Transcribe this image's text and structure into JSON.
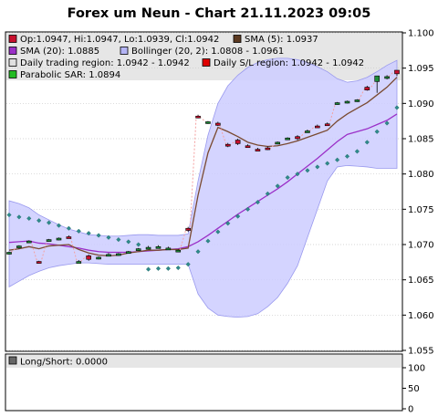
{
  "title": "Forex um Neun - Chart 21.11.2023 09:05",
  "legend": [
    {
      "label": "Op:1.0947, Hi:1.0947, Lo:1.0939, Cl:1.0942",
      "color": "#c8102e"
    },
    {
      "label": "SMA (5): 1.0937",
      "color": "#5c3a21"
    },
    {
      "label": "SMA (20): 1.0885",
      "color": "#9b30c8"
    },
    {
      "label": "Bollinger (20, 2): 1.0808 - 1.0961",
      "color": "#b4b4f5"
    },
    {
      "label": "Daily trading region: 1.0942 - 1.0942",
      "color": "#e0e0e0"
    },
    {
      "label": "Daily S/L region: 1.0942 - 1.0942",
      "color": "#e00000"
    },
    {
      "label": "Parabolic SAR: 1.0894",
      "color": "#22bb22"
    }
  ],
  "lower_panel": {
    "legend": "Long/Short: 0.0000",
    "legend_color": "#666666",
    "y_ticks": [
      "100",
      "50",
      "0"
    ]
  },
  "colors": {
    "bollinger_fill": "#ccccff",
    "bollinger_line": "#9999ee",
    "sma5": "#7a4a30",
    "sma20": "#9b30c8",
    "sar": "#2e8b8b",
    "candle_up": "#1e8c3a",
    "candle_down": "#c8102e",
    "jump_line": "#f4a0a0",
    "legend_bg": "#e6e6e6"
  },
  "chart_data": {
    "type": "candlestick",
    "title": "Forex um Neun - Chart 21.11.2023 09:05",
    "ylim": [
      1.055,
      1.1
    ],
    "y_ticks": [
      "1.055",
      "1.060",
      "1.065",
      "1.070",
      "1.075",
      "1.080",
      "1.085",
      "1.090",
      "1.095",
      "1.100"
    ],
    "candles": [
      {
        "o": 1.0688,
        "h": 1.069,
        "l": 1.0686,
        "c": 1.0689
      },
      {
        "o": 1.0697,
        "h": 1.0699,
        "l": 1.0694,
        "c": 1.0698
      },
      {
        "o": 1.0704,
        "h": 1.0706,
        "l": 1.0702,
        "c": 1.0705
      },
      {
        "o": 1.0676,
        "h": 1.0677,
        "l": 1.0673,
        "c": 1.0674
      },
      {
        "o": 1.0706,
        "h": 1.0708,
        "l": 1.0704,
        "c": 1.0707
      },
      {
        "o": 1.0708,
        "h": 1.071,
        "l": 1.0706,
        "c": 1.0709
      },
      {
        "o": 1.0711,
        "h": 1.0713,
        "l": 1.0709,
        "c": 1.071
      },
      {
        "o": 1.0676,
        "h": 1.0678,
        "l": 1.0674,
        "c": 1.0676
      },
      {
        "o": 1.0684,
        "h": 1.0686,
        "l": 1.0677,
        "c": 1.0679
      },
      {
        "o": 1.0681,
        "h": 1.0683,
        "l": 1.0679,
        "c": 1.0682
      },
      {
        "o": 1.0686,
        "h": 1.0688,
        "l": 1.0684,
        "c": 1.0686
      },
      {
        "o": 1.0686,
        "h": 1.0688,
        "l": 1.0684,
        "c": 1.0687
      },
      {
        "o": 1.0689,
        "h": 1.0691,
        "l": 1.0687,
        "c": 1.069
      },
      {
        "o": 1.0693,
        "h": 1.0695,
        "l": 1.0691,
        "c": 1.0694
      },
      {
        "o": 1.0696,
        "h": 1.0698,
        "l": 1.0694,
        "c": 1.0696
      },
      {
        "o": 1.0697,
        "h": 1.0699,
        "l": 1.0695,
        "c": 1.0697
      },
      {
        "o": 1.0695,
        "h": 1.0697,
        "l": 1.0693,
        "c": 1.0695
      },
      {
        "o": 1.0691,
        "h": 1.0693,
        "l": 1.0689,
        "c": 1.0692
      },
      {
        "o": 1.0723,
        "h": 1.0725,
        "l": 1.0718,
        "c": 1.072
      },
      {
        "o": 1.0882,
        "h": 1.0884,
        "l": 1.0879,
        "c": 1.0881
      },
      {
        "o": 1.0873,
        "h": 1.0875,
        "l": 1.0871,
        "c": 1.0874
      },
      {
        "o": 1.0872,
        "h": 1.0874,
        "l": 1.0868,
        "c": 1.0869
      },
      {
        "o": 1.0842,
        "h": 1.0844,
        "l": 1.0838,
        "c": 1.084
      },
      {
        "o": 1.0848,
        "h": 1.085,
        "l": 1.0841,
        "c": 1.0843
      },
      {
        "o": 1.084,
        "h": 1.0842,
        "l": 1.0838,
        "c": 1.0839
      },
      {
        "o": 1.0835,
        "h": 1.0837,
        "l": 1.0833,
        "c": 1.0834
      },
      {
        "o": 1.0837,
        "h": 1.0839,
        "l": 1.0834,
        "c": 1.0835
      },
      {
        "o": 1.0844,
        "h": 1.0846,
        "l": 1.0842,
        "c": 1.0845
      },
      {
        "o": 1.085,
        "h": 1.0852,
        "l": 1.0848,
        "c": 1.0851
      },
      {
        "o": 1.0853,
        "h": 1.0855,
        "l": 1.0848,
        "c": 1.085
      },
      {
        "o": 1.0861,
        "h": 1.0863,
        "l": 1.0859,
        "c": 1.0861
      },
      {
        "o": 1.0868,
        "h": 1.087,
        "l": 1.0866,
        "c": 1.0867
      },
      {
        "o": 1.0871,
        "h": 1.0873,
        "l": 1.0869,
        "c": 1.087
      },
      {
        "o": 1.09,
        "h": 1.0902,
        "l": 1.0898,
        "c": 1.0901
      },
      {
        "o": 1.0902,
        "h": 1.0904,
        "l": 1.09,
        "c": 1.0903
      },
      {
        "o": 1.0904,
        "h": 1.0906,
        "l": 1.0902,
        "c": 1.0905
      },
      {
        "o": 1.0923,
        "h": 1.0925,
        "l": 1.0918,
        "c": 1.0919
      },
      {
        "o": 1.0931,
        "h": 1.0935,
        "l": 1.0915,
        "c": 1.0939
      },
      {
        "o": 1.0936,
        "h": 1.094,
        "l": 1.0934,
        "c": 1.0938
      },
      {
        "o": 1.0947,
        "h": 1.0947,
        "l": 1.0939,
        "c": 1.0942
      }
    ],
    "sma5": [
      1.0692,
      1.0694,
      1.0697,
      1.0694,
      1.0698,
      1.0699,
      1.07,
      1.0693,
      1.0688,
      1.0685,
      1.0684,
      1.0685,
      1.0688,
      1.069,
      1.0692,
      1.0692,
      1.0693,
      1.0693,
      1.0695,
      1.077,
      1.083,
      1.0866,
      1.086,
      1.0853,
      1.0845,
      1.0841,
      1.0839,
      1.084,
      1.0843,
      1.0847,
      1.0852,
      1.0857,
      1.0862,
      1.0875,
      1.0885,
      1.0893,
      1.0901,
      1.0912,
      1.0923,
      1.0937
    ],
    "sma20": [
      1.0703,
      1.0704,
      1.0705,
      1.0702,
      1.0701,
      1.0699,
      1.0697,
      1.0695,
      1.0692,
      1.069,
      1.0689,
      1.0689,
      1.0689,
      1.069,
      1.0691,
      1.0692,
      1.0693,
      1.0694,
      1.0697,
      1.0704,
      1.0713,
      1.0723,
      1.0733,
      1.0743,
      1.0752,
      1.0761,
      1.077,
      1.0779,
      1.0789,
      1.08,
      1.0811,
      1.0822,
      1.0834,
      1.0846,
      1.0856,
      1.086,
      1.0864,
      1.087,
      1.0876,
      1.0885
    ],
    "boll_upper": [
      1.0762,
      1.0758,
      1.0752,
      1.0742,
      1.0735,
      1.0728,
      1.0722,
      1.0718,
      1.0714,
      1.0713,
      1.0712,
      1.0712,
      1.0713,
      1.0714,
      1.0714,
      1.0713,
      1.0713,
      1.0713,
      1.0715,
      1.079,
      1.0855,
      1.09,
      1.0925,
      1.094,
      1.0951,
      1.0958,
      1.0962,
      1.0964,
      1.0964,
      1.0962,
      1.0958,
      1.0952,
      1.0945,
      1.0935,
      1.093,
      1.0932,
      1.0937,
      1.0945,
      1.0954,
      1.0961
    ],
    "boll_lower": [
      1.064,
      1.0648,
      1.0656,
      1.0662,
      1.0667,
      1.067,
      1.0672,
      1.0674,
      1.0674,
      1.0673,
      1.0672,
      1.0672,
      1.0672,
      1.0672,
      1.0672,
      1.0672,
      1.0672,
      1.0672,
      1.0672,
      1.063,
      1.061,
      1.06,
      1.0598,
      1.0597,
      1.0598,
      1.0602,
      1.0612,
      1.0625,
      1.0645,
      1.067,
      1.071,
      1.075,
      1.079,
      1.081,
      1.0812,
      1.0811,
      1.081,
      1.0808,
      1.0808,
      1.0808
    ],
    "sar": [
      1.0742,
      1.0739,
      1.0737,
      1.0734,
      1.0731,
      1.0727,
      1.0723,
      1.0719,
      1.0716,
      1.0713,
      1.071,
      1.0707,
      1.0704,
      1.07,
      1.0665,
      1.0666,
      1.0666,
      1.0667,
      1.0672,
      1.069,
      1.0705,
      1.0718,
      1.073,
      1.074,
      1.075,
      1.076,
      1.0772,
      1.0783,
      1.0795,
      1.08,
      1.0805,
      1.081,
      1.0815,
      1.082,
      1.0825,
      1.0832,
      1.0845,
      1.086,
      1.0872,
      1.0894
    ]
  }
}
